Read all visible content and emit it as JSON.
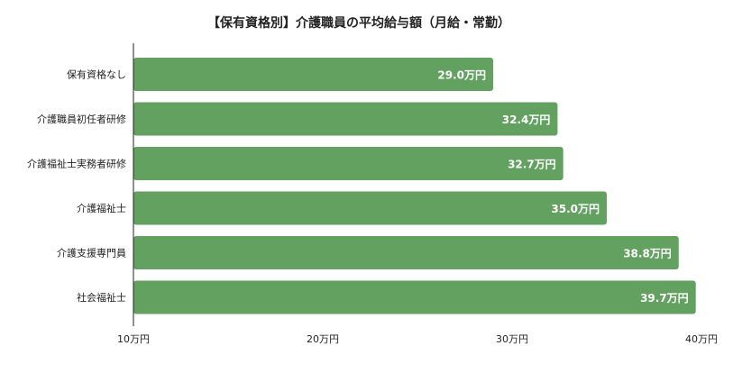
{
  "chart_data": {
    "type": "bar",
    "orientation": "horizontal",
    "title": "【保有資格別】介護職員の平均給与額（月給・常勤）",
    "categories": [
      "保有資格なし",
      "介護職員初任者研修",
      "介護福祉士実務者研修",
      "介護福祉士",
      "介護支援専門員",
      "社会福祉士"
    ],
    "values": [
      29.0,
      32.4,
      32.7,
      35.0,
      38.8,
      39.7
    ],
    "value_labels": [
      "29.0万円",
      "32.4万円",
      "32.7万円",
      "35.0万円",
      "38.8万円",
      "39.7万円"
    ],
    "x_ticks": [
      10,
      20,
      30,
      40
    ],
    "x_tick_labels": [
      "10万円",
      "20万円",
      "30万円",
      "40万円"
    ],
    "xlim": [
      10,
      40
    ],
    "bar_color": "#62a15f",
    "label_color": "#ffffff",
    "grid": false,
    "legend": "none"
  }
}
